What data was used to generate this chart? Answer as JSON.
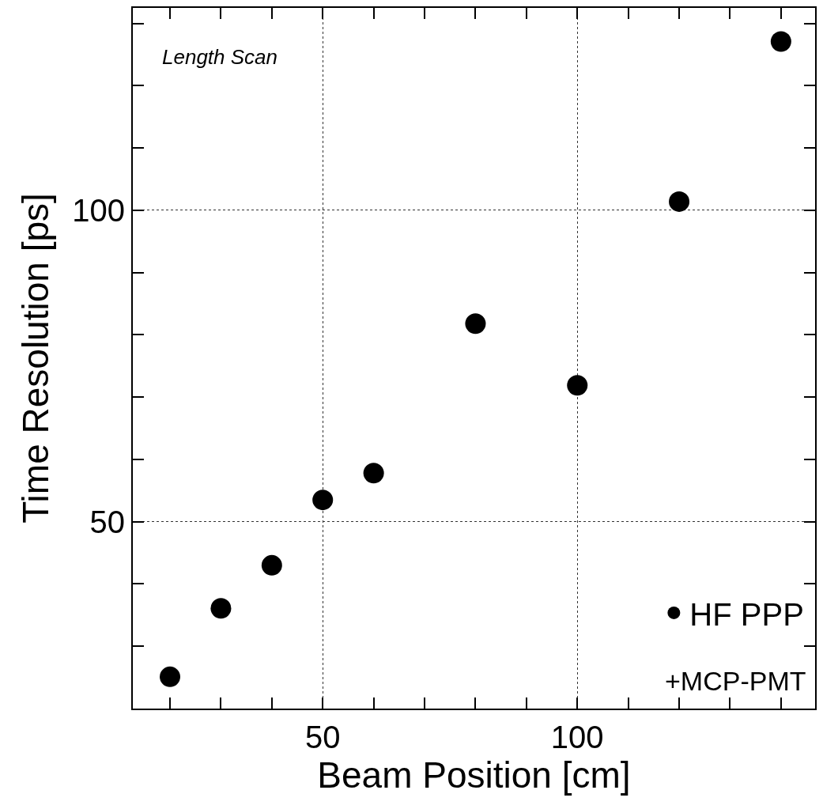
{
  "chart_data": {
    "type": "scatter",
    "xlabel": "Beam Position [cm]",
    "ylabel": "Time Resolution [ps]",
    "annotations": [
      "Length Scan",
      "+MCP-PMT"
    ],
    "x": [
      20,
      30,
      40,
      50,
      60,
      80,
      100,
      120,
      140
    ],
    "series": [
      {
        "name": "HF PPP",
        "color": "#000000",
        "values": [
          25.1,
          36.1,
          43.0,
          53.5,
          57.8,
          81.8,
          71.9,
          101.4,
          127.1
        ]
      }
    ],
    "xlim": [
      12.7,
      146.7
    ],
    "ylim": [
      20,
      132.5
    ],
    "xticks": [
      {
        "value": 20,
        "label": null
      },
      {
        "value": 30,
        "label": null
      },
      {
        "value": 40,
        "label": null
      },
      50,
      {
        "value": 60,
        "label": null
      },
      {
        "value": 70,
        "label": null
      },
      {
        "value": 80,
        "label": null
      },
      {
        "value": 90,
        "label": null
      },
      100,
      {
        "value": 110,
        "label": null
      },
      {
        "value": 120,
        "label": null
      },
      {
        "value": 130,
        "label": null
      },
      {
        "value": 140,
        "label": null
      }
    ],
    "yticks": [
      {
        "value": 30,
        "label": null
      },
      {
        "value": 40,
        "label": null
      },
      50,
      {
        "value": 60,
        "label": null
      },
      {
        "value": 70,
        "label": null
      },
      {
        "value": 80,
        "label": null
      },
      {
        "value": 90,
        "label": null
      },
      100,
      {
        "value": 110,
        "label": null
      },
      {
        "value": 120,
        "label": null
      },
      {
        "value": 130,
        "label": null
      }
    ],
    "grid": true,
    "legend": "bottom right",
    "marker": "circle"
  }
}
